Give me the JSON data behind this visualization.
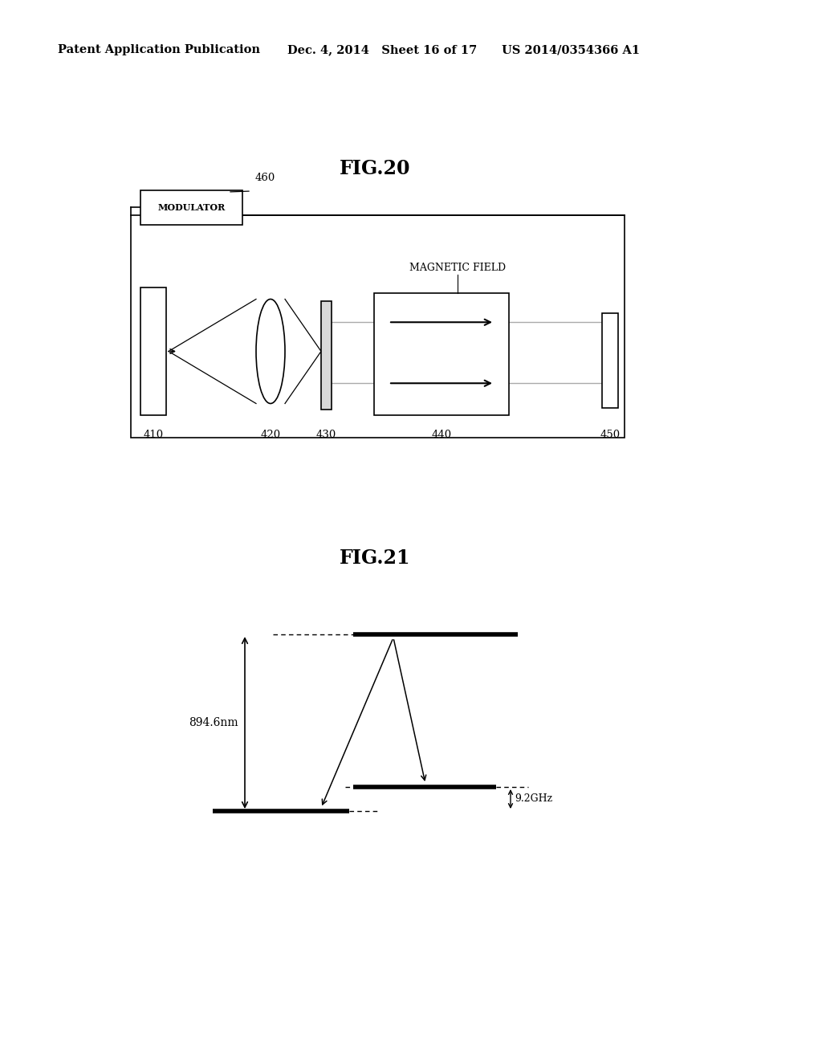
{
  "bg_color": "#ffffff",
  "header_left": "Patent Application Publication",
  "header_mid": "Dec. 4, 2014   Sheet 16 of 17",
  "header_right": "US 2014/0354366 A1",
  "fig20_title": "FIG.20",
  "fig21_title": "FIG.21",
  "label_460": "460",
  "label_410": "410",
  "label_420": "420",
  "label_430": "430",
  "label_440": "440",
  "label_450": "450",
  "modulator_text": "MODULATOR",
  "magnetic_field_text": "MAGNETIC FIELD",
  "label_894nm": "894.6nm",
  "label_9ghz": "9.2GHz"
}
